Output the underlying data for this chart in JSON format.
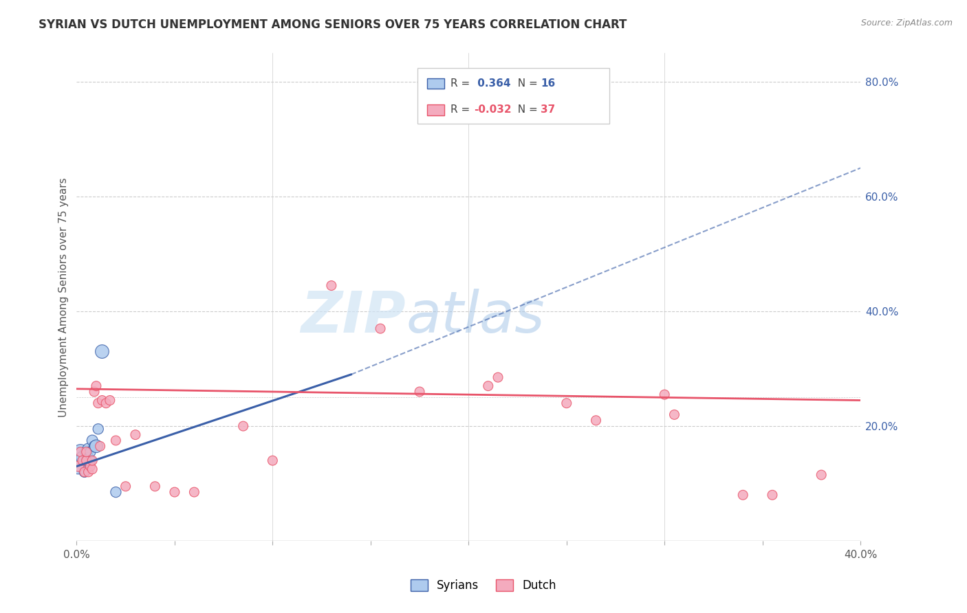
{
  "title": "SYRIAN VS DUTCH UNEMPLOYMENT AMONG SENIORS OVER 75 YEARS CORRELATION CHART",
  "source": "Source: ZipAtlas.com",
  "ylabel": "Unemployment Among Seniors over 75 years",
  "xlim": [
    0.0,
    0.4
  ],
  "ylim": [
    0.0,
    0.85
  ],
  "xticks": [
    0.0,
    0.05,
    0.1,
    0.15,
    0.2,
    0.25,
    0.3,
    0.35,
    0.4
  ],
  "xticklabels": [
    "0.0%",
    "",
    "",
    "",
    "",
    "",
    "",
    "",
    "40.0%"
  ],
  "yticks_right": [
    0.0,
    0.2,
    0.4,
    0.6,
    0.8
  ],
  "yticklabels_right": [
    "",
    "20.0%",
    "40.0%",
    "60.0%",
    "80.0%"
  ],
  "syrians_color": "#aecbee",
  "dutch_color": "#f4abbe",
  "trend_syrian_color": "#3a5fa8",
  "trend_dutch_color": "#e8546a",
  "legend_R_syrian": "0.364",
  "legend_N_syrian": "16",
  "legend_R_dutch": "-0.032",
  "legend_N_dutch": "37",
  "watermark_zip": "ZIP",
  "watermark_atlas": "atlas",
  "syrians_x": [
    0.001,
    0.002,
    0.003,
    0.004,
    0.005,
    0.005,
    0.006,
    0.006,
    0.007,
    0.007,
    0.008,
    0.009,
    0.01,
    0.011,
    0.013,
    0.02
  ],
  "syrians_y": [
    0.14,
    0.155,
    0.145,
    0.12,
    0.155,
    0.14,
    0.16,
    0.145,
    0.14,
    0.155,
    0.175,
    0.165,
    0.165,
    0.195,
    0.33,
    0.085
  ],
  "syrians_size": [
    800,
    250,
    180,
    120,
    150,
    120,
    150,
    120,
    120,
    120,
    130,
    120,
    180,
    120,
    200,
    120
  ],
  "dutch_x": [
    0.001,
    0.002,
    0.003,
    0.004,
    0.005,
    0.005,
    0.006,
    0.007,
    0.008,
    0.008,
    0.009,
    0.01,
    0.011,
    0.012,
    0.013,
    0.015,
    0.017,
    0.02,
    0.025,
    0.03,
    0.04,
    0.05,
    0.06,
    0.085,
    0.1,
    0.13,
    0.155,
    0.175,
    0.21,
    0.215,
    0.25,
    0.265,
    0.3,
    0.305,
    0.34,
    0.355,
    0.38
  ],
  "dutch_y": [
    0.13,
    0.155,
    0.14,
    0.12,
    0.14,
    0.155,
    0.12,
    0.13,
    0.125,
    0.14,
    0.26,
    0.27,
    0.24,
    0.165,
    0.245,
    0.24,
    0.245,
    0.175,
    0.095,
    0.185,
    0.095,
    0.085,
    0.085,
    0.2,
    0.14,
    0.445,
    0.37,
    0.26,
    0.27,
    0.285,
    0.24,
    0.21,
    0.255,
    0.22,
    0.08,
    0.08,
    0.115
  ],
  "dutch_size": [
    120,
    100,
    100,
    100,
    100,
    100,
    100,
    100,
    100,
    100,
    100,
    100,
    100,
    100,
    100,
    100,
    100,
    100,
    100,
    100,
    100,
    100,
    100,
    100,
    100,
    100,
    100,
    100,
    100,
    100,
    100,
    100,
    100,
    100,
    100,
    100,
    100
  ],
  "background_color": "#ffffff",
  "grid_color": "#cccccc"
}
